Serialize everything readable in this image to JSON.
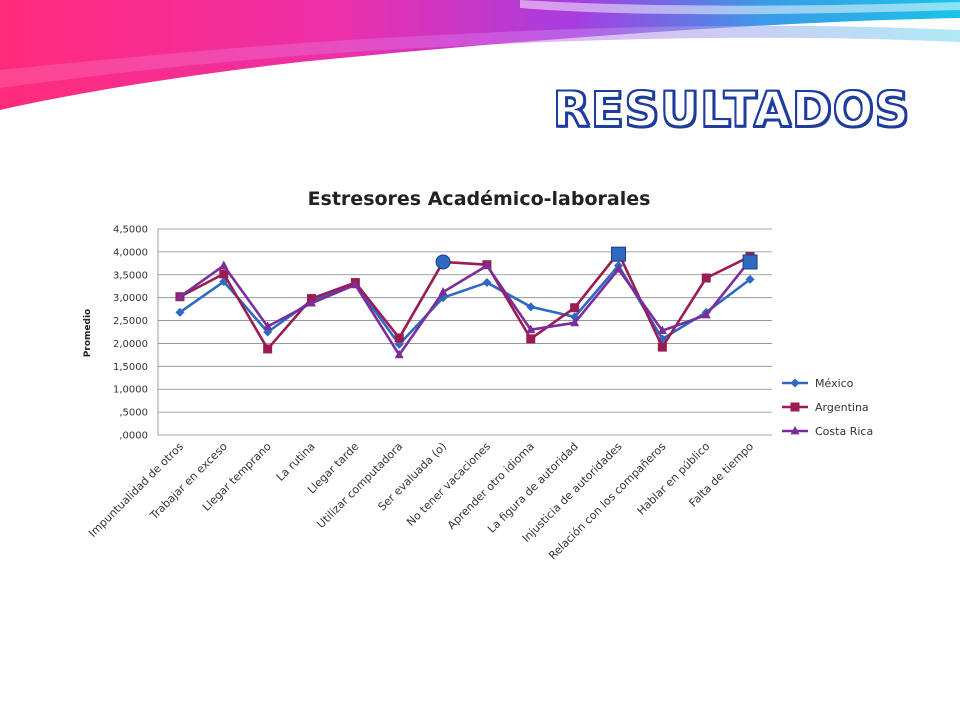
{
  "page": {
    "title": "RESULTADOS"
  },
  "colors": {
    "title_fill": "#ffffff",
    "title_outline": "#1e3d9c",
    "mexico": "#2e6ac0",
    "argentina": "#9b1b53",
    "costa_rica": "#7b2d9c",
    "highlight": "#2e6ac0",
    "grid": "#888888"
  },
  "chart_data": {
    "type": "line",
    "title": "Estresores Académico-laborales",
    "xlabel": "",
    "ylabel": "Promedio",
    "ylim": [
      0,
      4.5
    ],
    "yticks": [
      ",0000",
      ",5000",
      "1,0000",
      "1,5000",
      "2,0000",
      "2,5000",
      "3,0000",
      "3,5000",
      "4,0000",
      "4,5000"
    ],
    "grid": true,
    "legend_position": "right",
    "categories": [
      "Impuntualidad de otros",
      "Trabajar en exceso",
      "Llegar temprano",
      "La rutina",
      "Llegar tarde",
      "Utilizar computadora",
      "Ser evaluada (o)",
      "No tener vacaciones",
      "Aprender otro idioma",
      "La figura de autoridad",
      "Injusticia de autoridades",
      "Relación con los compañeros",
      "Hablar en público",
      "Falta de tiempo"
    ],
    "series": [
      {
        "name": "México",
        "marker": "diamond",
        "values": [
          2.68,
          3.35,
          2.25,
          2.93,
          3.3,
          1.98,
          3.0,
          3.33,
          2.8,
          2.58,
          3.7,
          2.1,
          2.68,
          3.4
        ]
      },
      {
        "name": "Argentina",
        "marker": "square",
        "values": [
          3.02,
          3.52,
          1.88,
          2.98,
          3.33,
          2.12,
          3.78,
          3.72,
          2.1,
          2.78,
          3.98,
          1.92,
          3.43,
          3.9
        ]
      },
      {
        "name": "Costa Rica",
        "marker": "triangle",
        "values": [
          3.02,
          3.7,
          2.37,
          2.88,
          3.28,
          1.75,
          3.12,
          3.7,
          2.3,
          2.45,
          3.62,
          2.28,
          2.62,
          3.82
        ]
      }
    ],
    "highlights": [
      {
        "category_index": 6,
        "value": 3.78,
        "shape": "circle"
      },
      {
        "category_index": 10,
        "value": 3.95,
        "shape": "square"
      },
      {
        "category_index": 13,
        "value": 3.78,
        "shape": "square"
      }
    ]
  }
}
